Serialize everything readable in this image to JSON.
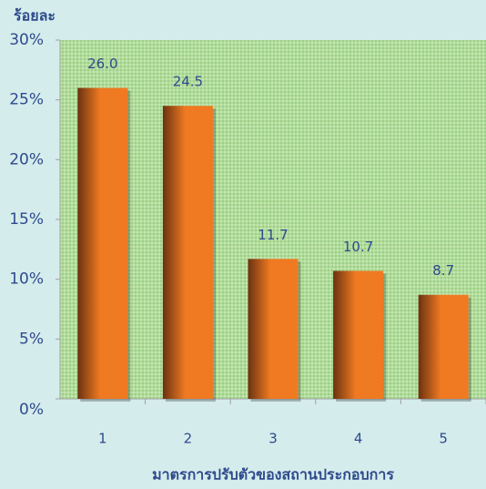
{
  "chart_data": {
    "type": "bar",
    "y_label": "ร้อยละ",
    "x_label": "มาตรการปรับตัวของสถานประกอบการ",
    "categories": [
      "1",
      "2",
      "3",
      "4",
      "5"
    ],
    "values": [
      26.0,
      24.5,
      11.7,
      10.7,
      8.7
    ],
    "value_labels": [
      "26.0",
      "24.5",
      "11.7",
      "10.7",
      "8.7"
    ],
    "color": "#f07a22",
    "ylim": [
      0,
      30
    ],
    "yticks": [
      {
        "value": 0,
        "label": "0%"
      },
      {
        "value": 5,
        "label": "5%"
      },
      {
        "value": 10,
        "label": "10%"
      },
      {
        "value": 15,
        "label": "15%"
      },
      {
        "value": 20,
        "label": "20%"
      },
      {
        "value": 25,
        "label": "25%"
      },
      {
        "value": 30,
        "label": "30%"
      }
    ]
  }
}
